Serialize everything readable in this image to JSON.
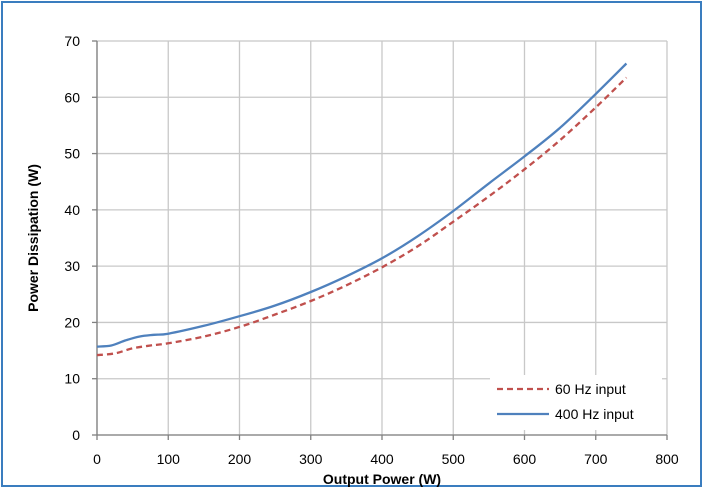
{
  "chart_data": {
    "type": "line",
    "title": "",
    "xlabel": "Output Power (W)",
    "ylabel": "Power Dissipation (W)",
    "xlim": [
      0,
      800
    ],
    "ylim": [
      0,
      70
    ],
    "xticks": [
      0,
      100,
      200,
      300,
      400,
      500,
      600,
      700,
      800
    ],
    "yticks": [
      0,
      10,
      20,
      30,
      40,
      50,
      60,
      70
    ],
    "grid": true,
    "legend_position": "bottom-right",
    "series": [
      {
        "name": "60 Hz input",
        "color": "#c0504d",
        "style": "dashed",
        "x": [
          0,
          25,
          50,
          75,
          100,
          150,
          200,
          250,
          300,
          350,
          400,
          450,
          500,
          550,
          600,
          650,
          700,
          743
        ],
        "y": [
          14.2,
          14.5,
          15.4,
          15.9,
          16.3,
          17.5,
          19.2,
          21.4,
          23.8,
          26.6,
          29.8,
          33.5,
          37.9,
          42.4,
          47.2,
          52.4,
          58.2,
          63.5
        ]
      },
      {
        "name": "400 Hz input",
        "color": "#4f81bd",
        "style": "solid",
        "x": [
          0,
          20,
          40,
          60,
          80,
          100,
          150,
          200,
          250,
          300,
          350,
          400,
          450,
          500,
          550,
          600,
          650,
          700,
          743
        ],
        "y": [
          15.7,
          15.9,
          16.8,
          17.5,
          17.8,
          18.0,
          19.4,
          21.1,
          23.0,
          25.4,
          28.2,
          31.4,
          35.3,
          39.8,
          44.7,
          49.5,
          54.6,
          60.6,
          66.0
        ]
      }
    ]
  }
}
